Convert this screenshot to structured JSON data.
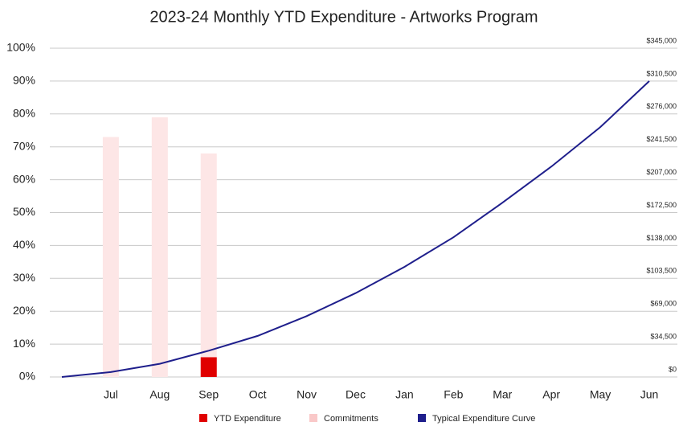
{
  "chart_data": {
    "type": "bar",
    "title": "2023-24 Monthly YTD Expenditure - Artworks Program",
    "categories": [
      null,
      "Jul",
      "Aug",
      "Sep",
      "Oct",
      "Nov",
      "Dec",
      "Jan",
      "Feb",
      "Mar",
      "Apr",
      "May",
      "Jun"
    ],
    "series": [
      {
        "name": "YTD Expenditure",
        "type": "bar",
        "color": "#e00000",
        "values": [
          null,
          null,
          null,
          6,
          null,
          null,
          null,
          null,
          null,
          null,
          null,
          null,
          null
        ]
      },
      {
        "name": "Commitments",
        "type": "bar",
        "color": "#fde6e6",
        "values": [
          null,
          73,
          79,
          68,
          null,
          null,
          null,
          null,
          null,
          null,
          null,
          null,
          null
        ]
      },
      {
        "name": "Typical Expenditure Curve",
        "type": "line",
        "color": "#1f1f8c",
        "values": [
          0,
          1.5,
          4,
          8,
          12.5,
          18.5,
          25.5,
          33.5,
          42.5,
          53,
          64,
          76,
          90
        ]
      }
    ],
    "ylim": [
      0,
      100
    ],
    "yticks": [
      {
        "value": 0,
        "label": "0%"
      },
      {
        "value": 10,
        "label": "10%"
      },
      {
        "value": 20,
        "label": "20%"
      },
      {
        "value": 30,
        "label": "30%"
      },
      {
        "value": 40,
        "label": "40%"
      },
      {
        "value": 50,
        "label": "50%"
      },
      {
        "value": 60,
        "label": "60%"
      },
      {
        "value": 70,
        "label": "70%"
      },
      {
        "value": 80,
        "label": "80%"
      },
      {
        "value": 90,
        "label": "90%"
      },
      {
        "value": 100,
        "label": "100%"
      }
    ],
    "y2lim": [
      0,
      345000
    ],
    "y2ticks": [
      {
        "value": 0,
        "label": "$0"
      },
      {
        "value": 34500,
        "label": "$34,500"
      },
      {
        "value": 69000,
        "label": "$69,000"
      },
      {
        "value": 103500,
        "label": "$103,500"
      },
      {
        "value": 138000,
        "label": "$138,000"
      },
      {
        "value": 172500,
        "label": "$172,500"
      },
      {
        "value": 207000,
        "label": "$207,000"
      },
      {
        "value": 241500,
        "label": "$241,500"
      },
      {
        "value": 276000,
        "label": "$276,000"
      },
      {
        "value": 310500,
        "label": "$310,500"
      },
      {
        "value": 345000,
        "label": "$345,000"
      }
    ],
    "grid": true,
    "legend": "bottom"
  }
}
